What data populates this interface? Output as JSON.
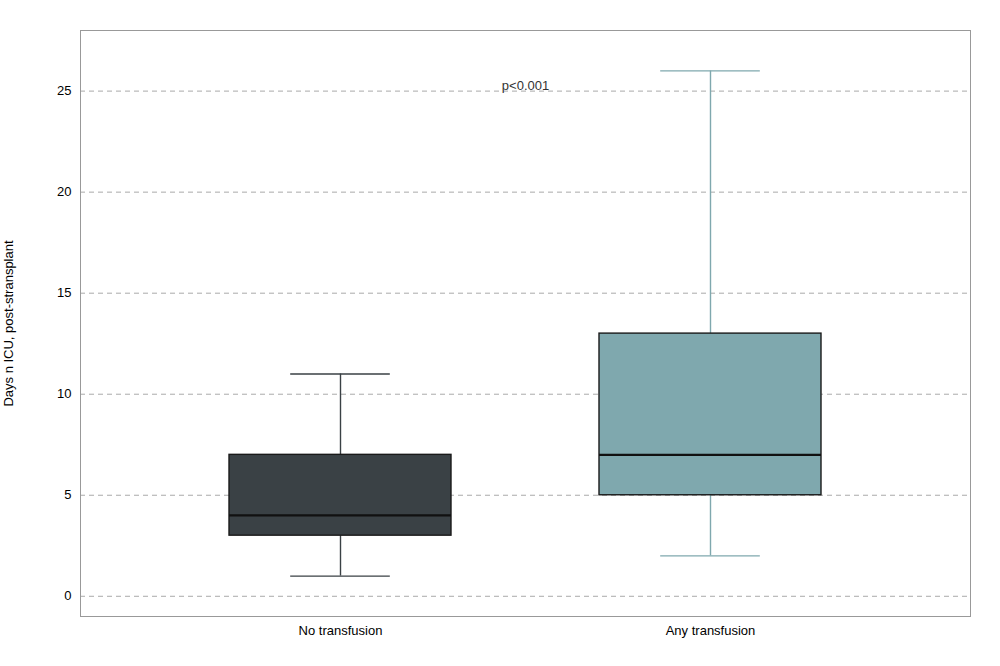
{
  "chart_data": {
    "type": "box",
    "categories": [
      "No transfusion",
      "Any transfusion"
    ],
    "boxes": [
      {
        "whisker_low": 1.0,
        "q1": 3.0,
        "median": 4.0,
        "q3": 7.0,
        "whisker_high": 11.0
      },
      {
        "whisker_low": 2.0,
        "q1": 5.0,
        "median": 7.0,
        "q3": 13.0,
        "whisker_high": 26.0
      }
    ],
    "colors": [
      "#3a4145",
      "#7fa8ae"
    ],
    "ylabel": "Days n ICU, post-stransplant",
    "ylim": [
      -1,
      28
    ],
    "yticks": [
      0,
      5,
      10,
      15,
      20,
      25
    ],
    "grid": true,
    "annotation": "p<0.001"
  }
}
